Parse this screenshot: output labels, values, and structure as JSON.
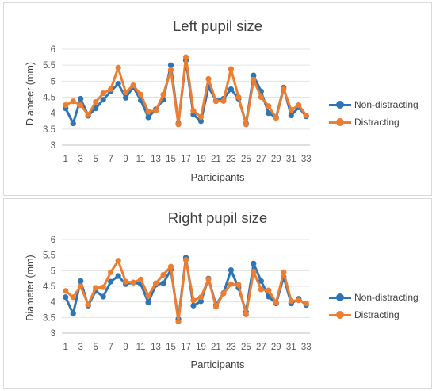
{
  "chart_data": [
    {
      "type": "line",
      "title": "Left pupil size",
      "xlabel": "Participants",
      "ylabel": "Diameer (mm)",
      "ylim": [
        3,
        6
      ],
      "yticks": [
        "3",
        "3.5",
        "4",
        "4.5",
        "5",
        "5.5",
        "6"
      ],
      "xticks": [
        "1",
        "3",
        "5",
        "7",
        "9",
        "11",
        "13",
        "15",
        "17",
        "19",
        "21",
        "23",
        "25",
        "27",
        "29",
        "31",
        "33"
      ],
      "x": [
        1,
        2,
        3,
        4,
        5,
        6,
        7,
        8,
        9,
        10,
        11,
        12,
        13,
        14,
        15,
        16,
        17,
        18,
        19,
        20,
        21,
        22,
        23,
        24,
        25,
        26,
        27,
        28,
        29,
        30,
        31,
        32,
        33
      ],
      "grid": true,
      "legend_position": "right",
      "series": [
        {
          "name": "Non-distracting",
          "color": "#2E75B6",
          "values": [
            4.15,
            3.68,
            4.45,
            3.92,
            4.15,
            4.42,
            4.68,
            4.92,
            4.48,
            4.82,
            4.4,
            3.87,
            4.12,
            4.42,
            5.5,
            3.68,
            5.65,
            3.95,
            3.75,
            4.82,
            4.4,
            4.45,
            4.75,
            4.45,
            3.68,
            5.18,
            4.68,
            4.0,
            3.87,
            4.8,
            3.93,
            4.18,
            3.9
          ]
        },
        {
          "name": "Distracting",
          "color": "#ED7D31",
          "values": [
            4.25,
            4.37,
            4.25,
            3.95,
            4.35,
            4.62,
            4.75,
            5.42,
            4.65,
            4.87,
            4.58,
            4.05,
            4.08,
            4.58,
            5.35,
            3.65,
            5.75,
            4.07,
            3.88,
            5.07,
            4.37,
            4.38,
            5.38,
            4.5,
            3.65,
            5.05,
            4.5,
            4.22,
            3.85,
            4.75,
            4.1,
            4.25,
            3.93
          ]
        }
      ]
    },
    {
      "type": "line",
      "title": "Right pupil size",
      "xlabel": "Participants",
      "ylabel": "Diameter (mm)",
      "ylim": [
        3,
        6
      ],
      "yticks": [
        "3",
        "3.5",
        "4",
        "4.5",
        "5",
        "5.5",
        "6"
      ],
      "xticks": [
        "1",
        "3",
        "5",
        "7",
        "9",
        "11",
        "13",
        "15",
        "17",
        "19",
        "21",
        "23",
        "25",
        "27",
        "29",
        "31",
        "33"
      ],
      "x": [
        1,
        2,
        3,
        4,
        5,
        6,
        7,
        8,
        9,
        10,
        11,
        12,
        13,
        14,
        15,
        16,
        17,
        18,
        19,
        20,
        21,
        22,
        23,
        24,
        25,
        26,
        27,
        28,
        29,
        30,
        31,
        32,
        33
      ],
      "grid": true,
      "legend_position": "right",
      "series": [
        {
          "name": "Non-distracting",
          "color": "#2E75B6",
          "values": [
            4.15,
            3.62,
            4.67,
            3.88,
            4.35,
            4.17,
            4.65,
            4.83,
            4.57,
            4.62,
            4.57,
            3.98,
            4.55,
            4.6,
            5.03,
            3.45,
            5.42,
            3.88,
            4.02,
            4.75,
            3.9,
            4.28,
            5.02,
            4.45,
            3.68,
            5.23,
            4.67,
            4.17,
            3.95,
            4.8,
            3.95,
            4.1,
            3.9
          ]
        },
        {
          "name": "Distracting",
          "color": "#ED7D31",
          "values": [
            4.35,
            4.15,
            4.5,
            3.92,
            4.45,
            4.47,
            4.95,
            5.32,
            4.65,
            4.62,
            4.72,
            4.2,
            4.6,
            4.87,
            5.13,
            3.37,
            5.35,
            4.05,
            4.15,
            4.73,
            3.85,
            4.27,
            4.57,
            4.55,
            3.6,
            4.97,
            4.4,
            4.37,
            3.98,
            4.95,
            4.03,
            4.05,
            3.95
          ]
        }
      ]
    }
  ]
}
